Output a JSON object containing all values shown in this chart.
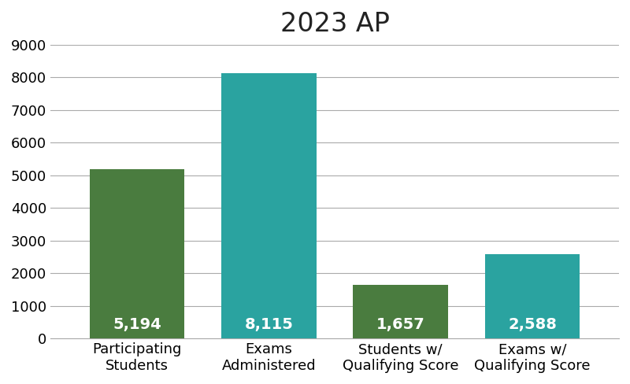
{
  "title": "2023 AP",
  "categories": [
    "Participating\nStudents",
    "Exams\nAdministered",
    "Students w/\nQualifying Score",
    "Exams w/\nQualifying Score"
  ],
  "values": [
    5194,
    8115,
    1657,
    2588
  ],
  "labels": [
    "5,194",
    "8,115",
    "1,657",
    "2,588"
  ],
  "bar_colors": [
    "#4a7c3f",
    "#2aa3a0",
    "#4a7c3f",
    "#2aa3a0"
  ],
  "ylim": [
    0,
    9000
  ],
  "yticks": [
    0,
    1000,
    2000,
    3000,
    4000,
    5000,
    6000,
    7000,
    8000,
    9000
  ],
  "ytick_labels": [
    "0",
    "1000",
    "2000",
    "3000",
    "4000",
    "5000",
    "6000",
    "7000",
    "8000",
    "9000"
  ],
  "background_color": "#ffffff",
  "title_fontsize": 24,
  "tick_fontsize": 13,
  "bar_label_fontsize": 14,
  "bar_width": 0.72,
  "grid_color": "#aaaaaa",
  "grid_linewidth": 0.8
}
